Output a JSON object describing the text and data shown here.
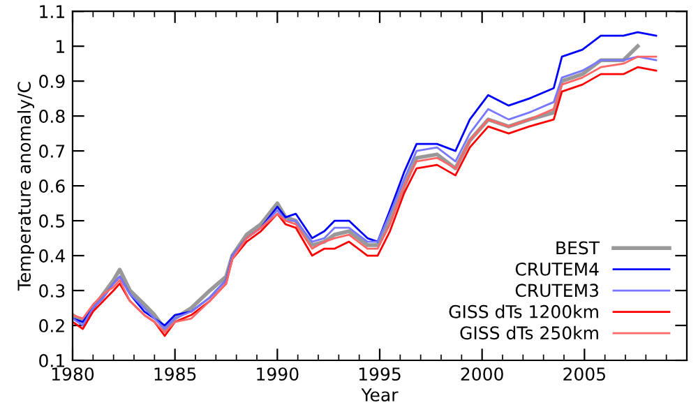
{
  "chart_data": {
    "type": "line",
    "xlabel": "Year",
    "ylabel": "Temperature anomaly/C",
    "x": [
      1980.0,
      1980.5,
      1981.0,
      1981.5,
      1982.0,
      1982.3,
      1982.8,
      1983.5,
      1984.0,
      1984.5,
      1985.0,
      1985.8,
      1986.7,
      1987.5,
      1987.8,
      1988.5,
      1989.2,
      1990.0,
      1990.4,
      1990.9,
      1991.7,
      1992.3,
      1992.8,
      1993.5,
      1994.4,
      1994.9,
      1995.5,
      1996.2,
      1996.8,
      1997.8,
      1998.7,
      1999.4,
      2000.3,
      2001.3,
      2002.3,
      2003.5,
      2003.9,
      2004.9,
      2005.8,
      2006.9,
      2007.6,
      2008.5
    ],
    "series": [
      {
        "name": "BEST",
        "color": "#999999",
        "values": [
          0.23,
          0.21,
          0.25,
          0.29,
          0.33,
          0.36,
          0.3,
          0.26,
          0.23,
          0.19,
          0.22,
          0.25,
          0.3,
          0.34,
          0.4,
          0.46,
          0.49,
          0.55,
          0.51,
          0.5,
          0.43,
          0.44,
          0.46,
          0.47,
          0.43,
          0.43,
          0.5,
          0.6,
          0.68,
          0.69,
          0.65,
          0.73,
          0.79,
          0.77,
          0.79,
          0.81,
          0.9,
          0.92,
          0.96,
          0.96,
          1.0,
          null
        ]
      },
      {
        "name": "CRUTEM4",
        "color": "#0000ff",
        "values": [
          0.22,
          0.21,
          0.25,
          0.28,
          0.32,
          0.34,
          0.29,
          0.24,
          0.22,
          0.2,
          0.23,
          0.24,
          0.28,
          0.33,
          0.4,
          0.45,
          0.48,
          0.54,
          0.51,
          0.52,
          0.45,
          0.47,
          0.5,
          0.5,
          0.45,
          0.44,
          0.53,
          0.64,
          0.72,
          0.72,
          0.7,
          0.79,
          0.86,
          0.83,
          0.85,
          0.88,
          0.97,
          0.99,
          1.03,
          1.03,
          1.04,
          1.03
        ]
      },
      {
        "name": "CRUTEM3",
        "color": "#7777ff",
        "values": [
          0.22,
          0.2,
          0.25,
          0.28,
          0.32,
          0.34,
          0.29,
          0.25,
          0.22,
          0.19,
          0.22,
          0.24,
          0.28,
          0.33,
          0.4,
          0.45,
          0.48,
          0.53,
          0.5,
          0.5,
          0.44,
          0.45,
          0.48,
          0.48,
          0.44,
          0.44,
          0.52,
          0.62,
          0.7,
          0.71,
          0.67,
          0.75,
          0.82,
          0.79,
          0.81,
          0.84,
          0.91,
          0.93,
          0.96,
          0.96,
          0.97,
          0.96
        ]
      },
      {
        "name": "GISS dTs 1200km",
        "color": "#ff0000",
        "values": [
          0.21,
          0.19,
          0.24,
          0.27,
          0.3,
          0.32,
          0.27,
          0.23,
          0.21,
          0.17,
          0.21,
          0.23,
          0.27,
          0.32,
          0.39,
          0.44,
          0.47,
          0.52,
          0.49,
          0.48,
          0.4,
          0.42,
          0.42,
          0.44,
          0.4,
          0.4,
          0.47,
          0.58,
          0.65,
          0.66,
          0.63,
          0.71,
          0.77,
          0.75,
          0.77,
          0.79,
          0.87,
          0.89,
          0.92,
          0.92,
          0.94,
          0.93
        ]
      },
      {
        "name": "GISS dTs 250km",
        "color": "#ff6666",
        "values": [
          0.23,
          0.22,
          0.26,
          0.29,
          0.31,
          0.33,
          0.27,
          0.23,
          0.21,
          0.18,
          0.21,
          0.22,
          0.27,
          0.32,
          0.39,
          0.45,
          0.48,
          0.52,
          0.5,
          0.49,
          0.42,
          0.44,
          0.45,
          0.46,
          0.42,
          0.42,
          0.49,
          0.6,
          0.67,
          0.68,
          0.65,
          0.73,
          0.79,
          0.77,
          0.79,
          0.82,
          0.89,
          0.91,
          0.94,
          0.95,
          0.97,
          0.97
        ]
      }
    ],
    "xlim": [
      1980,
      2010
    ],
    "xticks": [
      1980,
      1985,
      1990,
      1995,
      2000,
      2005
    ],
    "ylim": [
      0.1,
      1.1
    ],
    "yticks": [
      0.1,
      0.2,
      0.3,
      0.4,
      0.5,
      0.6,
      0.7,
      0.8,
      0.9,
      1,
      1.1
    ],
    "grid": false,
    "legend": "bottom right",
    "marker": "none",
    "line_style": "solid"
  }
}
